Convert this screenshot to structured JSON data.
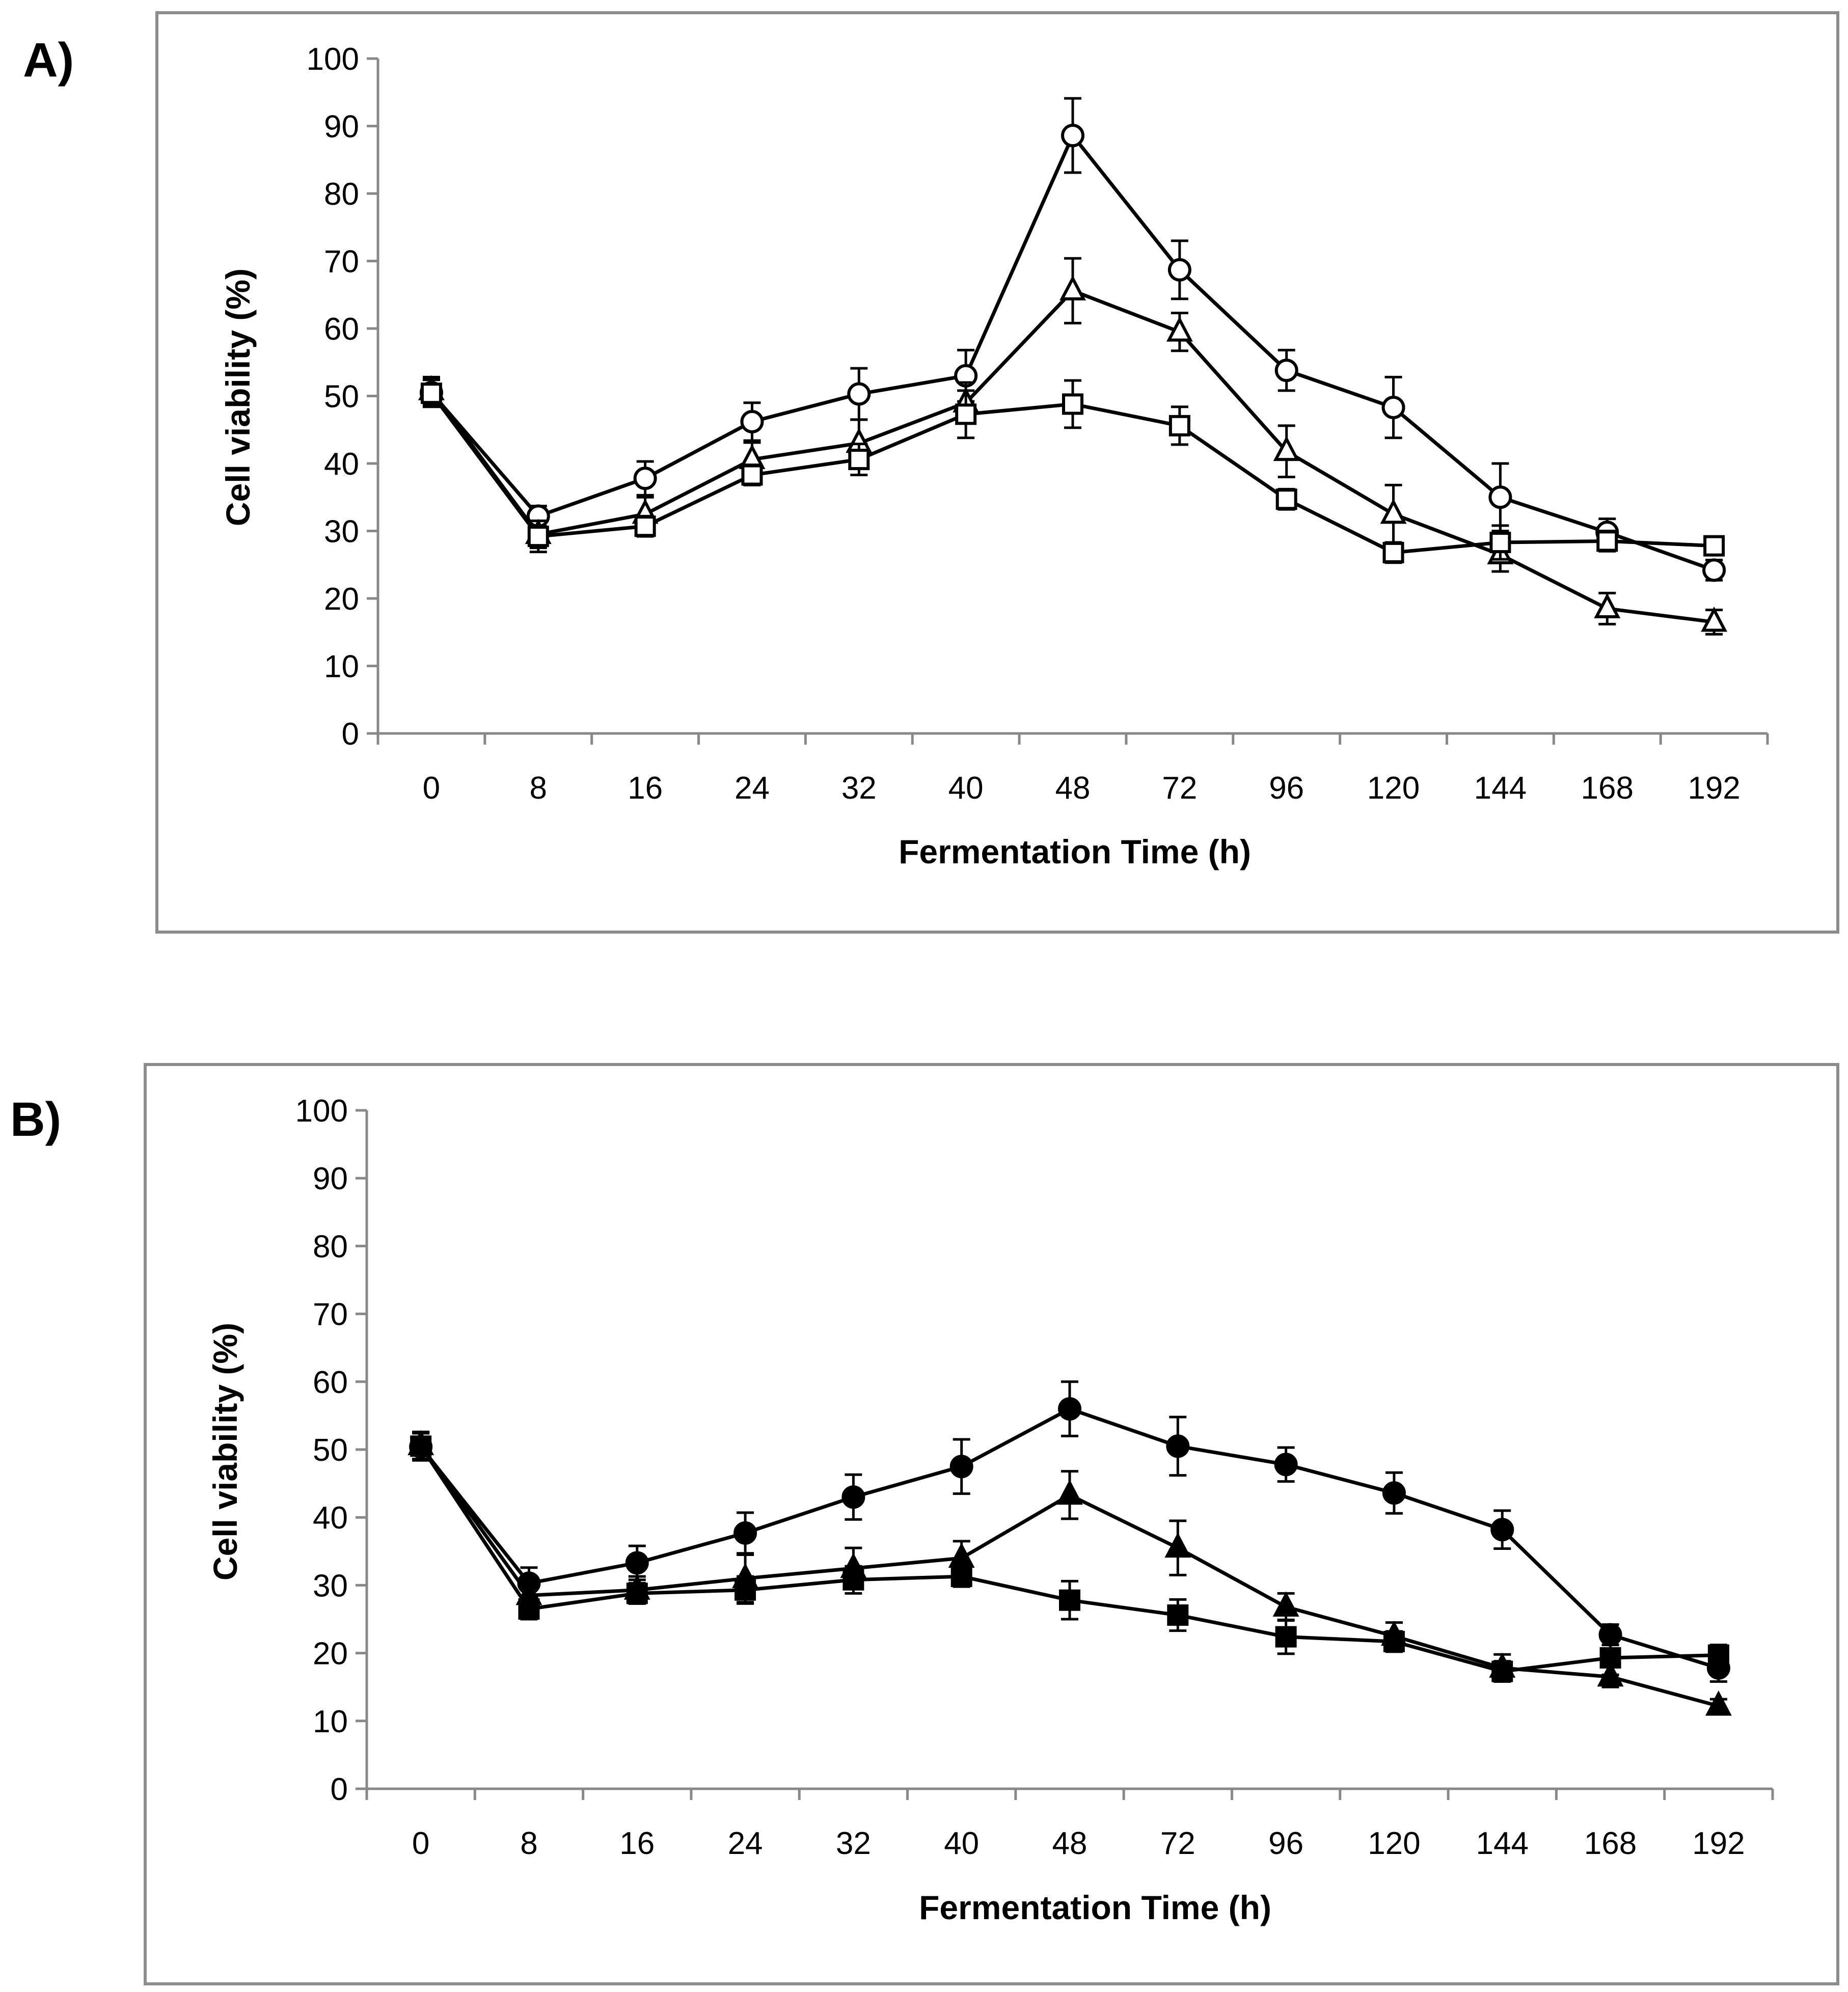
{
  "chart_data": [
    {
      "panel_label": "A)",
      "type": "line",
      "categories": [
        "0",
        "8",
        "16",
        "24",
        "32",
        "40",
        "48",
        "72",
        "96",
        "120",
        "144",
        "168",
        "192"
      ],
      "xlabel": "Fermentation Time (h)",
      "ylabel": "Cell viability (%)",
      "ylim": [
        0,
        100
      ],
      "yticks": [
        "0",
        "10",
        "20",
        "30",
        "40",
        "50",
        "60",
        "70",
        "80",
        "90",
        "100"
      ],
      "grid": false,
      "legend": "none",
      "series": [
        {
          "name": "open circle",
          "marker": "circle",
          "filled": false,
          "values": [
            50.5,
            32.2,
            37.8,
            46.2,
            50.3,
            53.0,
            88.6,
            68.7,
            53.8,
            48.3,
            35.0,
            29.8,
            24.2
          ],
          "errors": [
            2.0,
            1.5,
            2.5,
            2.8,
            3.8,
            3.8,
            5.5,
            4.3,
            3.0,
            4.5,
            5.0,
            2.0,
            1.5
          ]
        },
        {
          "name": "open triangle",
          "marker": "triangle",
          "filled": false,
          "values": [
            50.8,
            29.5,
            32.5,
            40.6,
            43.0,
            49.0,
            65.6,
            59.5,
            41.8,
            32.5,
            26.5,
            18.5,
            16.5
          ],
          "errors": [
            2.0,
            2.0,
            2.5,
            2.5,
            3.5,
            3.0,
            4.8,
            2.8,
            3.8,
            4.3,
            2.5,
            2.3,
            1.8
          ]
        },
        {
          "name": "open square",
          "marker": "square",
          "filled": false,
          "values": [
            50.4,
            29.2,
            30.7,
            38.3,
            40.6,
            47.3,
            48.8,
            45.6,
            34.7,
            26.8,
            28.3,
            28.5,
            27.8
          ],
          "errors": [
            2.0,
            2.3,
            1.5,
            1.5,
            2.3,
            3.5,
            3.5,
            2.8,
            1.5,
            1.5,
            2.5,
            1.5,
            1.0
          ]
        }
      ]
    },
    {
      "panel_label": "B)",
      "type": "line",
      "categories": [
        "0",
        "8",
        "16",
        "24",
        "32",
        "40",
        "48",
        "72",
        "96",
        "120",
        "144",
        "168",
        "192"
      ],
      "xlabel": "Fermentation Time (h)",
      "ylabel": "Cell viability (%)",
      "ylim": [
        0,
        100
      ],
      "yticks": [
        "0",
        "10",
        "20",
        "30",
        "40",
        "50",
        "60",
        "70",
        "80",
        "90",
        "100"
      ],
      "grid": false,
      "legend": "none",
      "series": [
        {
          "name": "filled circle",
          "marker": "circle",
          "filled": true,
          "values": [
            50.4,
            30.3,
            33.3,
            37.7,
            43.0,
            47.5,
            56.0,
            50.5,
            47.8,
            43.6,
            38.2,
            22.7,
            17.8
          ],
          "errors": [
            2.0,
            2.3,
            2.5,
            3.0,
            3.3,
            4.0,
            4.0,
            4.3,
            2.5,
            3.0,
            2.8,
            1.5,
            2.0
          ]
        },
        {
          "name": "filled triangle",
          "marker": "triangle",
          "filled": true,
          "values": [
            50.6,
            28.5,
            29.3,
            31.0,
            32.5,
            34.0,
            43.3,
            35.5,
            26.8,
            22.5,
            17.8,
            16.5,
            12.2
          ],
          "errors": [
            2.0,
            2.0,
            2.0,
            3.5,
            3.0,
            2.5,
            3.5,
            4.0,
            2.0,
            2.0,
            2.0,
            1.5,
            1.0
          ]
        },
        {
          "name": "filled square",
          "marker": "square",
          "filled": true,
          "values": [
            50.5,
            26.5,
            28.8,
            29.3,
            30.8,
            31.3,
            27.8,
            25.6,
            22.4,
            21.7,
            17.3,
            19.3,
            19.7
          ],
          "errors": [
            2.0,
            1.5,
            1.5,
            2.0,
            2.0,
            1.5,
            2.8,
            2.3,
            2.5,
            1.5,
            1.5,
            2.5,
            1.5
          ]
        }
      ]
    }
  ]
}
